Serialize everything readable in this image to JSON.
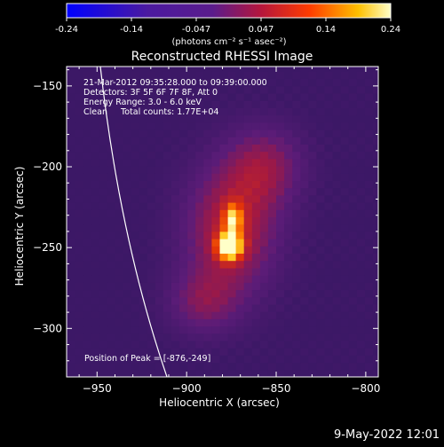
{
  "colorbar": {
    "ticks": [
      "-0.24",
      "-0.14",
      "-0.047",
      "0.047",
      "0.14",
      "0.24"
    ],
    "units_label": "(photons cm⁻² s⁻¹ asec⁻²)"
  },
  "chart_data": {
    "type": "heatmap",
    "title": "Reconstructed RHESSI Image",
    "xlabel": "Heliocentric X (arcsec)",
    "ylabel": "Heliocentric Y (arcsec)",
    "xlim": [
      -967,
      -793
    ],
    "ylim": [
      -330,
      -138
    ],
    "x_ticks": [
      -950,
      -900,
      -850,
      -800
    ],
    "y_ticks": [
      -150,
      -200,
      -250,
      -300
    ],
    "x_tick_labels": [
      "−950",
      "−900",
      "−850",
      "−800"
    ],
    "y_tick_labels": [
      "−150",
      "−200",
      "−250",
      "−300"
    ],
    "colorbar_range": [
      -0.24,
      0.24
    ],
    "peak": [
      -876,
      -249
    ],
    "annotations": [
      "21-Mar-2012 09:35:28.000 to 09:39:00.000",
      "Detectors: 3F 5F 6F 7F 8F, Att 0",
      "Energy Range: 3.0 - 6.0 keV",
      "Clean     Total counts: 1.77E+04"
    ],
    "peak_label": "Position of Peak = [-876,-249]"
  },
  "footer": {
    "timestamp": "9-May-2022 12:01"
  }
}
